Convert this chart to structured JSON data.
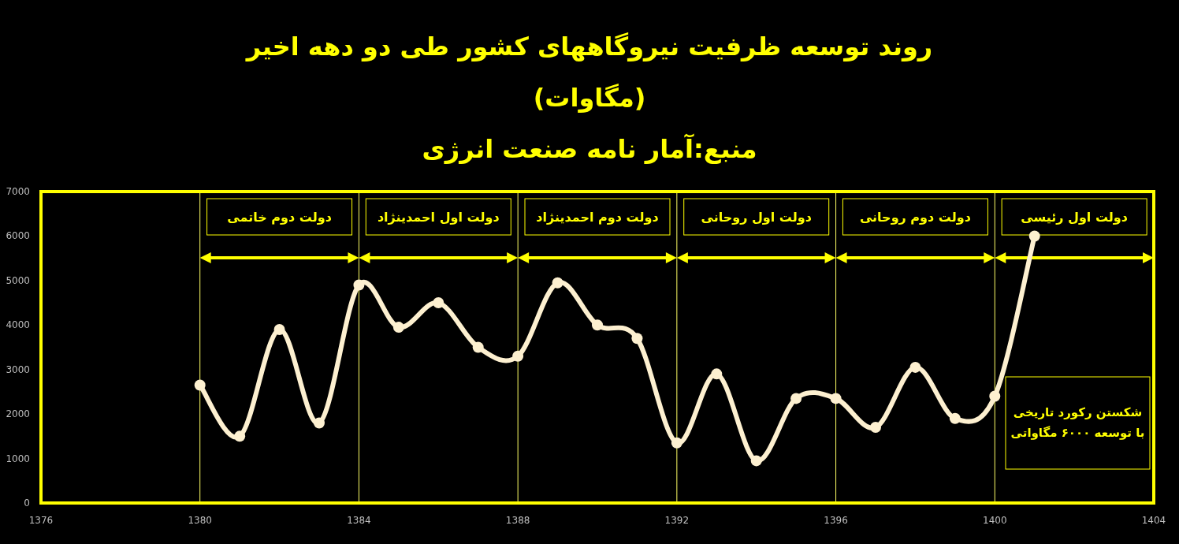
{
  "chart_data": {
    "type": "line",
    "title": "روند توسعه ظرفیت نیروگاههای کشور طی دو دهه اخیر",
    "subtitle": "(مگاوات)",
    "annotations": [
      "منبع:آمار نامه صنعت انرژی",
      "شکستن رکورد تاریخی با توسعه ۶۰۰۰ مگاواتی",
      "دولت دوم خاتمی",
      "دولت اول احمدینژاد",
      "دولت دوم احمدینژاد",
      "دولت اول روحانی",
      "دولت دوم روحانی",
      "دولت اول رئیسی"
    ],
    "x": [
      1380,
      1381,
      1382,
      1383,
      1384,
      1385,
      1386,
      1387,
      1388,
      1389,
      1390,
      1391,
      1392,
      1393,
      1394,
      1395,
      1396,
      1397,
      1398,
      1399,
      1400,
      1401
    ],
    "series": [
      {
        "color": "#fdf0d0",
        "values": [
          2650,
          1500,
          3900,
          1800,
          4900,
          3950,
          4500,
          3500,
          3300,
          4950,
          4000,
          3700,
          1350,
          2900,
          950,
          2350,
          2350,
          1700,
          3050,
          1900,
          2400,
          6000
        ]
      }
    ],
    "xlim": [
      1376,
      1404
    ],
    "xticks": [
      1376,
      1380,
      1384,
      1388,
      1392,
      1396,
      1400,
      1404
    ],
    "ylim": [
      0,
      7000
    ],
    "yticks": [
      0,
      1000,
      2000,
      3000,
      4000,
      5000,
      6000,
      7000
    ],
    "marker": "circle",
    "line_style": "solid",
    "ref_lines": [
      {
        "axis": "x",
        "value": 1380,
        "color": "#ffff66"
      },
      {
        "axis": "x",
        "value": 1384,
        "color": "#ffff66"
      },
      {
        "axis": "x",
        "value": 1388,
        "color": "#ffff66"
      },
      {
        "axis": "x",
        "value": 1392,
        "color": "#ffff66"
      },
      {
        "axis": "x",
        "value": 1396,
        "color": "#ffff66"
      },
      {
        "axis": "x",
        "value": 1400,
        "color": "#ffff66"
      }
    ]
  }
}
